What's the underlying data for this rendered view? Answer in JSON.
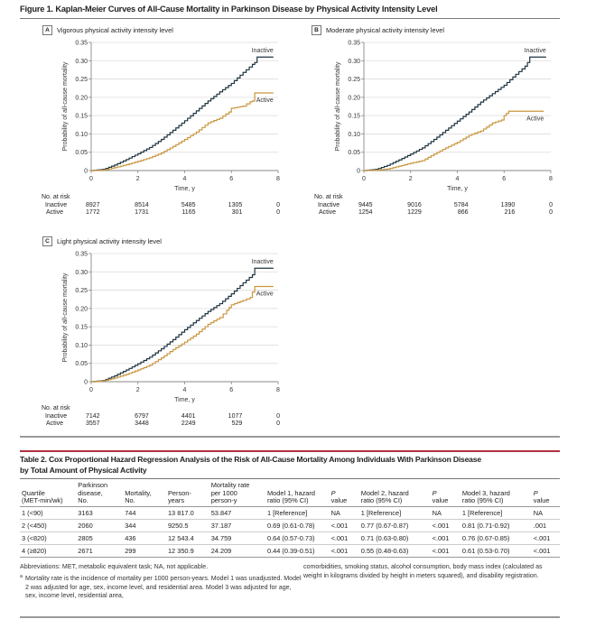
{
  "figure": {
    "title": "Figure 1. Kaplan-Meier Curves of All-Cause Mortality in Parkinson Disease by Physical Activity Intensity Level",
    "risk_header": "No. at risk"
  },
  "chart_data": [
    {
      "type": "line",
      "panel_letter": "A",
      "title": "Vigorous physical activity intensity level",
      "xlabel": "Time, y",
      "ylabel": "Probability of all-cause mortality",
      "xlim": [
        0,
        8
      ],
      "ylim": [
        0,
        0.35
      ],
      "xticks": [
        "0",
        "2",
        "4",
        "6",
        "8"
      ],
      "yticks": [
        "0",
        "0.05",
        "0.10",
        "0.15",
        "0.20",
        "0.25",
        "0.30",
        "0.35"
      ],
      "grid": true,
      "series": [
        {
          "name": "Inactive",
          "color": "#1f3540",
          "x": [
            0,
            0.5,
            1,
            1.5,
            2,
            2.5,
            3,
            3.5,
            4,
            4.5,
            5,
            5.5,
            6,
            6.5,
            6.9,
            7.0,
            7.1,
            7.8
          ],
          "y": [
            0,
            0.003,
            0.015,
            0.03,
            0.046,
            0.063,
            0.085,
            0.11,
            0.136,
            0.163,
            0.19,
            0.215,
            0.238,
            0.268,
            0.29,
            0.295,
            0.31,
            0.31
          ]
        },
        {
          "name": "Active",
          "color": "#c9963f",
          "x": [
            0,
            0.5,
            1,
            1.5,
            2,
            2.5,
            3,
            3.5,
            4,
            4.5,
            5,
            5.5,
            5.9,
            6.0,
            6.5,
            6.8,
            6.9,
            7.0,
            7.8
          ],
          "y": [
            0,
            0.001,
            0.008,
            0.016,
            0.025,
            0.035,
            0.048,
            0.066,
            0.085,
            0.105,
            0.13,
            0.143,
            0.16,
            0.17,
            0.176,
            0.188,
            0.19,
            0.212,
            0.212
          ]
        }
      ],
      "at_risk": {
        "times": [
          0,
          2,
          4,
          6,
          8
        ],
        "rows": [
          {
            "label": "Inactive",
            "values": [
              "8927",
              "8514",
              "5485",
              "1305",
              "0"
            ]
          },
          {
            "label": "Active",
            "values": [
              "1772",
              "1731",
              "1165",
              "301",
              "0"
            ]
          }
        ]
      }
    },
    {
      "type": "line",
      "panel_letter": "B",
      "title": "Moderate physical activity intensity level",
      "xlabel": "Time, y",
      "ylabel": "Probability of all-cause mortality",
      "xlim": [
        0,
        8
      ],
      "ylim": [
        0,
        0.35
      ],
      "xticks": [
        "0",
        "2",
        "4",
        "6",
        "8"
      ],
      "yticks": [
        "0",
        "0.05",
        "0.10",
        "0.15",
        "0.20",
        "0.25",
        "0.30",
        "0.35"
      ],
      "grid": true,
      "series": [
        {
          "name": "Inactive",
          "color": "#1f3540",
          "x": [
            0,
            0.5,
            1,
            1.5,
            2,
            2.5,
            3,
            3.5,
            4,
            4.5,
            5,
            5.5,
            6,
            6.5,
            6.9,
            7.0,
            7.1,
            7.8
          ],
          "y": [
            0,
            0.003,
            0.014,
            0.029,
            0.045,
            0.062,
            0.085,
            0.11,
            0.135,
            0.16,
            0.187,
            0.21,
            0.233,
            0.263,
            0.285,
            0.295,
            0.31,
            0.31
          ]
        },
        {
          "name": "Active",
          "color": "#c9963f",
          "x": [
            0,
            0.5,
            1,
            1.5,
            2,
            2.5,
            3,
            3.5,
            4,
            4.5,
            5,
            5.5,
            5.9,
            6.0,
            6.2,
            7.7
          ],
          "y": [
            0,
            0.001,
            0.004,
            0.012,
            0.02,
            0.027,
            0.045,
            0.062,
            0.077,
            0.096,
            0.108,
            0.13,
            0.138,
            0.15,
            0.162,
            0.162
          ]
        }
      ],
      "at_risk": {
        "times": [
          0,
          2,
          4,
          6,
          8
        ],
        "rows": [
          {
            "label": "Inactive",
            "values": [
              "9445",
              "9016",
              "5784",
              "1390",
              "0"
            ]
          },
          {
            "label": "Active",
            "values": [
              "1254",
              "1229",
              "866",
              "216",
              "0"
            ]
          }
        ]
      }
    },
    {
      "type": "line",
      "panel_letter": "C",
      "title": "Light physical activity intensity level",
      "xlabel": "Time, y",
      "ylabel": "Probability of all-cause mortality",
      "xlim": [
        0,
        8
      ],
      "ylim": [
        0,
        0.35
      ],
      "xticks": [
        "0",
        "2",
        "4",
        "6",
        "8"
      ],
      "yticks": [
        "0",
        "0.05",
        "0.10",
        "0.15",
        "0.20",
        "0.25",
        "0.30",
        "0.35"
      ],
      "grid": true,
      "series": [
        {
          "name": "Inactive",
          "color": "#1f3540",
          "x": [
            0,
            0.5,
            1,
            1.5,
            2,
            2.5,
            3,
            3.5,
            4,
            4.5,
            5,
            5.5,
            6,
            6.5,
            6.9,
            7.0,
            7.8
          ],
          "y": [
            0,
            0.003,
            0.016,
            0.032,
            0.049,
            0.067,
            0.09,
            0.115,
            0.142,
            0.167,
            0.192,
            0.213,
            0.24,
            0.27,
            0.292,
            0.31,
            0.31
          ]
        },
        {
          "name": "Active",
          "color": "#c9963f",
          "x": [
            0,
            0.5,
            1,
            1.5,
            2,
            2.5,
            3,
            3.5,
            4,
            4.5,
            5,
            5.5,
            5.8,
            6.0,
            6.5,
            6.8,
            6.9,
            7.0,
            7.8
          ],
          "y": [
            0,
            0.002,
            0.01,
            0.02,
            0.032,
            0.045,
            0.065,
            0.088,
            0.108,
            0.13,
            0.157,
            0.175,
            0.195,
            0.21,
            0.222,
            0.23,
            0.245,
            0.26,
            0.26
          ]
        }
      ],
      "at_risk": {
        "times": [
          0,
          2,
          4,
          6,
          8
        ],
        "rows": [
          {
            "label": "Inactive",
            "values": [
              "7142",
              "6797",
              "4401",
              "1077",
              "0"
            ]
          },
          {
            "label": "Active",
            "values": [
              "3557",
              "3448",
              "2249",
              "529",
              "0"
            ]
          }
        ]
      }
    }
  ],
  "table": {
    "title_line1": "Table 2. Cox Proportional Hazard Regression Analysis of the Risk of All-Cause Mortality Among Individuals With Parkinson Disease",
    "title_line2": "by Total Amount of Physical Activity",
    "headers": [
      [
        "Quartile",
        "(MET-min/wk)"
      ],
      [
        "Parkinson",
        "disease,",
        "No."
      ],
      [
        "Mortality,",
        "No."
      ],
      [
        "Person-",
        "years"
      ],
      [
        "Mortality rate",
        "per 1000",
        "person-y"
      ],
      [
        "Model 1, hazard",
        "ratio (95% CI)"
      ],
      [
        "P",
        "value"
      ],
      [
        "Model 2, hazard",
        "ratio (95% CI)"
      ],
      [
        "P",
        "value"
      ],
      [
        "Model 3, hazard",
        "ratio (95% CI)"
      ],
      [
        "P",
        "value"
      ]
    ],
    "rows": [
      [
        "1 (<90)",
        "3163",
        "744",
        "13 817.0",
        "53.847",
        "1 [Reference]",
        "NA",
        "1 [Reference]",
        "NA",
        "1 [Reference]",
        "NA"
      ],
      [
        "2 (<450)",
        "2060",
        "344",
        "9250.5",
        "37.187",
        "0.69 (0.61-0.78)",
        "<.001",
        "0.77 (0.67-0.87)",
        "<.001",
        "0.81 (0.71-0.92)",
        ".001"
      ],
      [
        "3 (<820)",
        "2805",
        "436",
        "12 543.4",
        "34.759",
        "0.64 (0.57-0.73)",
        "<.001",
        "0.71 (0.63-0.80)",
        "<.001",
        "0.76 (0.67-0.85)",
        "<.001"
      ],
      [
        "4 (≥820)",
        "2671",
        "299",
        "12 350.9",
        "24.209",
        "0.44 (0.39-0.51)",
        "<.001",
        "0.55 (0.48-0.63)",
        "<.001",
        "0.61 (0.53-0.70)",
        "<.001"
      ]
    ],
    "abbreviations": "Abbreviations: MET, metabolic equivalent task; NA, not applicable.",
    "footnote_marker": "a",
    "footnote_left": "Mortality rate is the incidence of mortality per 1000 person-years. Model 1 was unadjusted. Model 2 was adjusted for age, sex, income level, and residential area. Model 3 was adjusted for age, sex, income level, residential area,",
    "footnote_right": "comorbidities, smoking status, alcohol consumption, body mass index (calculated as weight in kilograms divided by height in meters squared), and disability registration."
  }
}
